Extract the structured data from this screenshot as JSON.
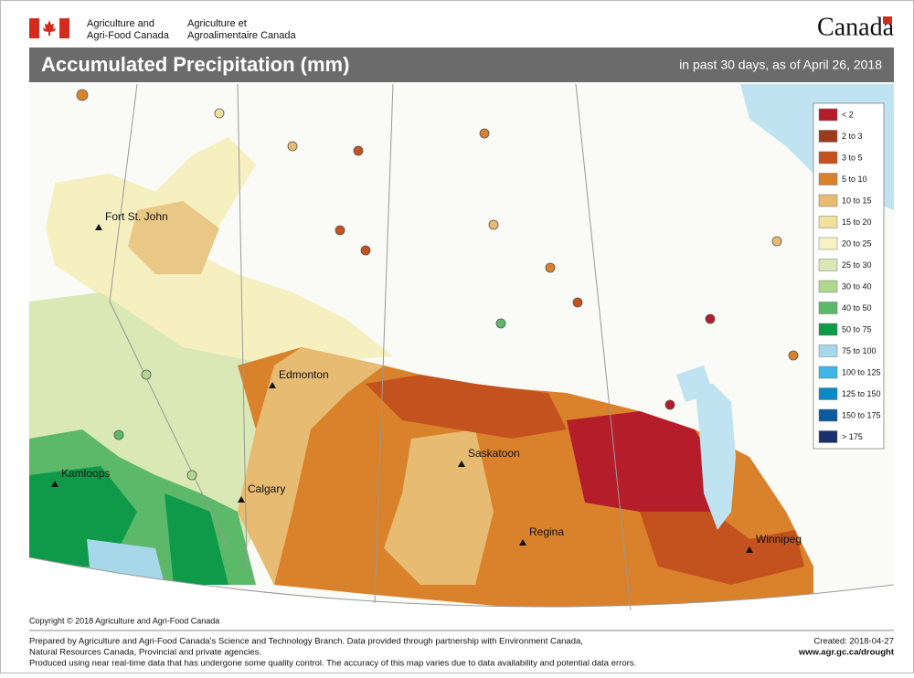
{
  "header": {
    "agency_en": [
      "Agriculture and",
      "Agri-Food Canada"
    ],
    "agency_fr": [
      "Agriculture et",
      "Agroalimentaire Canada"
    ],
    "wordmark": "Canada"
  },
  "title": "Accumulated Precipitation (mm)",
  "subtitle": "in past 30 days, as of April 26, 2018",
  "legend": {
    "items": [
      {
        "label": "< 2",
        "color": "#b51d2a"
      },
      {
        "label": "2 to 3",
        "color": "#9e3a1e"
      },
      {
        "label": "3 to 5",
        "color": "#c4521f"
      },
      {
        "label": "5 to 10",
        "color": "#d9822b"
      },
      {
        "label": "10 to 15",
        "color": "#e8bb72"
      },
      {
        "label": "15 to 20",
        "color": "#f2e19c"
      },
      {
        "label": "20 to 25",
        "color": "#f8f3c4"
      },
      {
        "label": "25 to 30",
        "color": "#d9e8b5"
      },
      {
        "label": "30 to 40",
        "color": "#b1d88f"
      },
      {
        "label": "40 to 50",
        "color": "#5cb96a"
      },
      {
        "label": "50 to 75",
        "color": "#0f9a4a"
      },
      {
        "label": "75 to 100",
        "color": "#a7d8ea"
      },
      {
        "label": "100 to 125",
        "color": "#3fb6e5"
      },
      {
        "label": "125 to 150",
        "color": "#0a8ac6"
      },
      {
        "label": "150 to 175",
        "color": "#0a5a9c"
      },
      {
        "label": "> 175",
        "color": "#1d2f6b"
      }
    ]
  },
  "cities": [
    "Fort St. John",
    "Edmonton",
    "Kamloops",
    "Calgary",
    "Saskatoon",
    "Regina",
    "Winnipeg"
  ],
  "copyright": "Copyright © 2018 Agriculture and Agri-Food Canada",
  "footer": {
    "lines": [
      "Prepared by Agriculture and Agri-Food Canada’s Science and Technology Branch. Data provided through partnership with Environment Canada,",
      "Natural Resources Canada, Provincial and private agencies.",
      "Produced using near real-time data that has undergone some quality control. The accuracy of this map varies due to data availability and potential data errors."
    ],
    "created": "Created: 2018-04-27",
    "url": "www.agr.gc.ca/drought"
  }
}
